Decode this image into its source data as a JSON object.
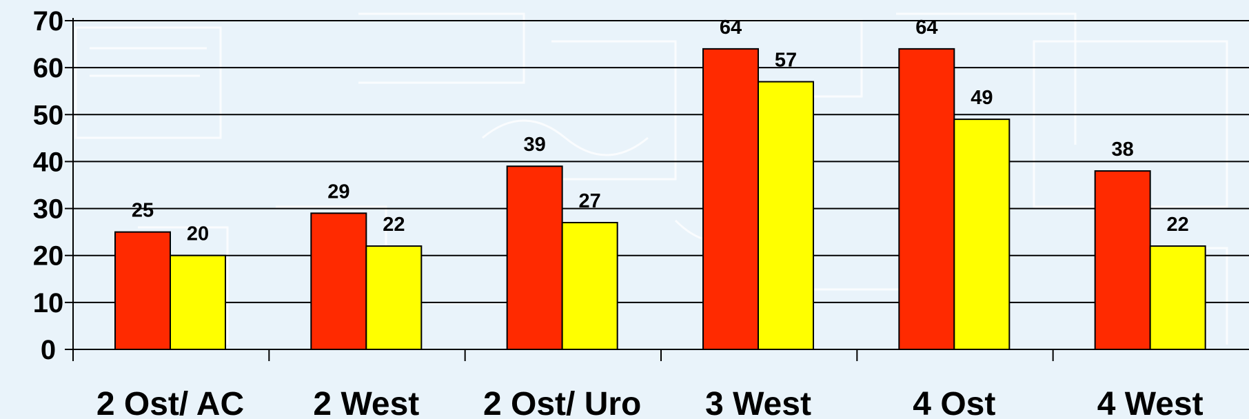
{
  "chart_data": {
    "type": "bar",
    "categories": [
      "2 Ost/ AC",
      "2 West",
      "2 Ost/ Uro",
      "3 West",
      "4 Ost",
      "4 West"
    ],
    "series": [
      {
        "values": [
          25,
          29,
          39,
          64,
          64,
          38
        ],
        "color": "#ff2a00"
      },
      {
        "values": [
          20,
          22,
          27,
          57,
          49,
          22
        ],
        "color": "#ffff00"
      }
    ],
    "ylim": [
      0,
      70
    ],
    "yticks": [
      0,
      10,
      20,
      30,
      40,
      50,
      60,
      70
    ],
    "grid": true,
    "legend": "none",
    "background_color": "#e9f3fa"
  }
}
